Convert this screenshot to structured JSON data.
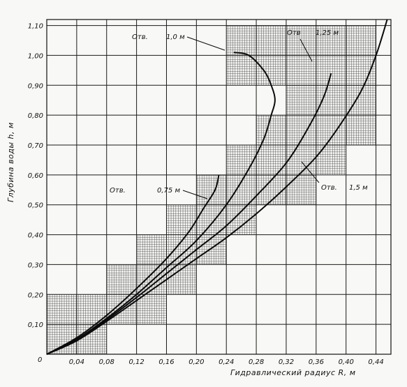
{
  "chart_data": {
    "type": "line",
    "xlabel": "Гидравлический радиус R, м",
    "ylabel": "Глубина воды h, м",
    "origin_label": "0",
    "xlim": [
      0,
      0.46
    ],
    "ylim": [
      0,
      1.12
    ],
    "x_ticks": [
      0.04,
      0.08,
      0.12,
      0.16,
      0.2,
      0.24,
      0.28,
      0.32,
      0.36,
      0.4,
      0.44
    ],
    "x_tick_labels": [
      "0,04",
      "0,08",
      "0,12",
      "0,16",
      "0,20",
      "0,24",
      "0,28",
      "0,32",
      "0,36",
      "0,40",
      "0,44"
    ],
    "y_ticks": [
      0.1,
      0.2,
      0.3,
      0.4,
      0.5,
      0.6,
      0.7,
      0.8,
      0.9,
      1.0,
      1.1
    ],
    "y_tick_labels": [
      "0,10",
      "0,20",
      "0,30",
      "0,40",
      "0,50",
      "0,60",
      "0,70",
      "0,80",
      "0,90",
      "1,00",
      "1,10"
    ],
    "grid": true,
    "series": [
      {
        "name": "Отв. 0,75 м",
        "label_parts": [
          "Отв.",
          "0,75 м"
        ],
        "points": [
          [
            0,
            0
          ],
          [
            0.04,
            0.055
          ],
          [
            0.08,
            0.13
          ],
          [
            0.12,
            0.22
          ],
          [
            0.16,
            0.32
          ],
          [
            0.19,
            0.41
          ],
          [
            0.21,
            0.49
          ],
          [
            0.225,
            0.55
          ],
          [
            0.23,
            0.6
          ]
        ]
      },
      {
        "name": "Отв. 1,0 м",
        "label_parts": [
          "Отв.",
          "1,0 м"
        ],
        "points": [
          [
            0,
            0
          ],
          [
            0.04,
            0.05
          ],
          [
            0.08,
            0.12
          ],
          [
            0.12,
            0.2
          ],
          [
            0.16,
            0.29
          ],
          [
            0.2,
            0.38
          ],
          [
            0.24,
            0.5
          ],
          [
            0.27,
            0.62
          ],
          [
            0.29,
            0.72
          ],
          [
            0.3,
            0.8
          ],
          [
            0.305,
            0.85
          ],
          [
            0.3,
            0.9
          ],
          [
            0.29,
            0.95
          ],
          [
            0.27,
            1.0
          ],
          [
            0.25,
            1.01
          ]
        ]
      },
      {
        "name": "Отв. 1,25 м",
        "label_parts": [
          "Отв",
          "1,25 м"
        ],
        "points": [
          [
            0,
            0
          ],
          [
            0.04,
            0.05
          ],
          [
            0.08,
            0.115
          ],
          [
            0.12,
            0.19
          ],
          [
            0.16,
            0.27
          ],
          [
            0.2,
            0.35
          ],
          [
            0.24,
            0.43
          ],
          [
            0.28,
            0.53
          ],
          [
            0.32,
            0.64
          ],
          [
            0.35,
            0.76
          ],
          [
            0.37,
            0.86
          ],
          [
            0.38,
            0.94
          ]
        ]
      },
      {
        "name": "Отв. 1,5 м",
        "label_parts": [
          "Отв.",
          "1,5 м"
        ],
        "points": [
          [
            0,
            0
          ],
          [
            0.04,
            0.045
          ],
          [
            0.08,
            0.11
          ],
          [
            0.12,
            0.18
          ],
          [
            0.16,
            0.25
          ],
          [
            0.2,
            0.32
          ],
          [
            0.24,
            0.39
          ],
          [
            0.28,
            0.47
          ],
          [
            0.32,
            0.56
          ],
          [
            0.36,
            0.66
          ],
          [
            0.39,
            0.76
          ],
          [
            0.42,
            0.88
          ],
          [
            0.44,
            1.0
          ],
          [
            0.455,
            1.12
          ]
        ]
      }
    ],
    "shaded_cells": [
      [
        0.0,
        0.0
      ],
      [
        0.04,
        0.0
      ],
      [
        0.0,
        0.1
      ],
      [
        0.04,
        0.1
      ],
      [
        0.08,
        0.1
      ],
      [
        0.08,
        0.2
      ],
      [
        0.12,
        0.2
      ],
      [
        0.12,
        0.1
      ],
      [
        0.12,
        0.3
      ],
      [
        0.16,
        0.2
      ],
      [
        0.16,
        0.3
      ],
      [
        0.16,
        0.4
      ],
      [
        0.2,
        0.3
      ],
      [
        0.2,
        0.4
      ],
      [
        0.2,
        0.5
      ],
      [
        0.24,
        0.4
      ],
      [
        0.24,
        0.5
      ],
      [
        0.24,
        0.6
      ],
      [
        0.28,
        0.5
      ],
      [
        0.28,
        0.6
      ],
      [
        0.32,
        0.5
      ],
      [
        0.28,
        0.7
      ],
      [
        0.32,
        0.6
      ],
      [
        0.32,
        0.7
      ],
      [
        0.36,
        0.6
      ],
      [
        0.36,
        0.7
      ],
      [
        0.32,
        0.8
      ],
      [
        0.36,
        0.8
      ],
      [
        0.4,
        0.7
      ],
      [
        0.4,
        0.8
      ],
      [
        0.24,
        0.9
      ],
      [
        0.28,
        0.9
      ],
      [
        0.24,
        1.0
      ],
      [
        0.28,
        1.0
      ],
      [
        0.32,
        0.9
      ],
      [
        0.36,
        0.9
      ],
      [
        0.4,
        0.9
      ],
      [
        0.32,
        1.0
      ],
      [
        0.36,
        1.0
      ],
      [
        0.4,
        1.0
      ]
    ]
  }
}
